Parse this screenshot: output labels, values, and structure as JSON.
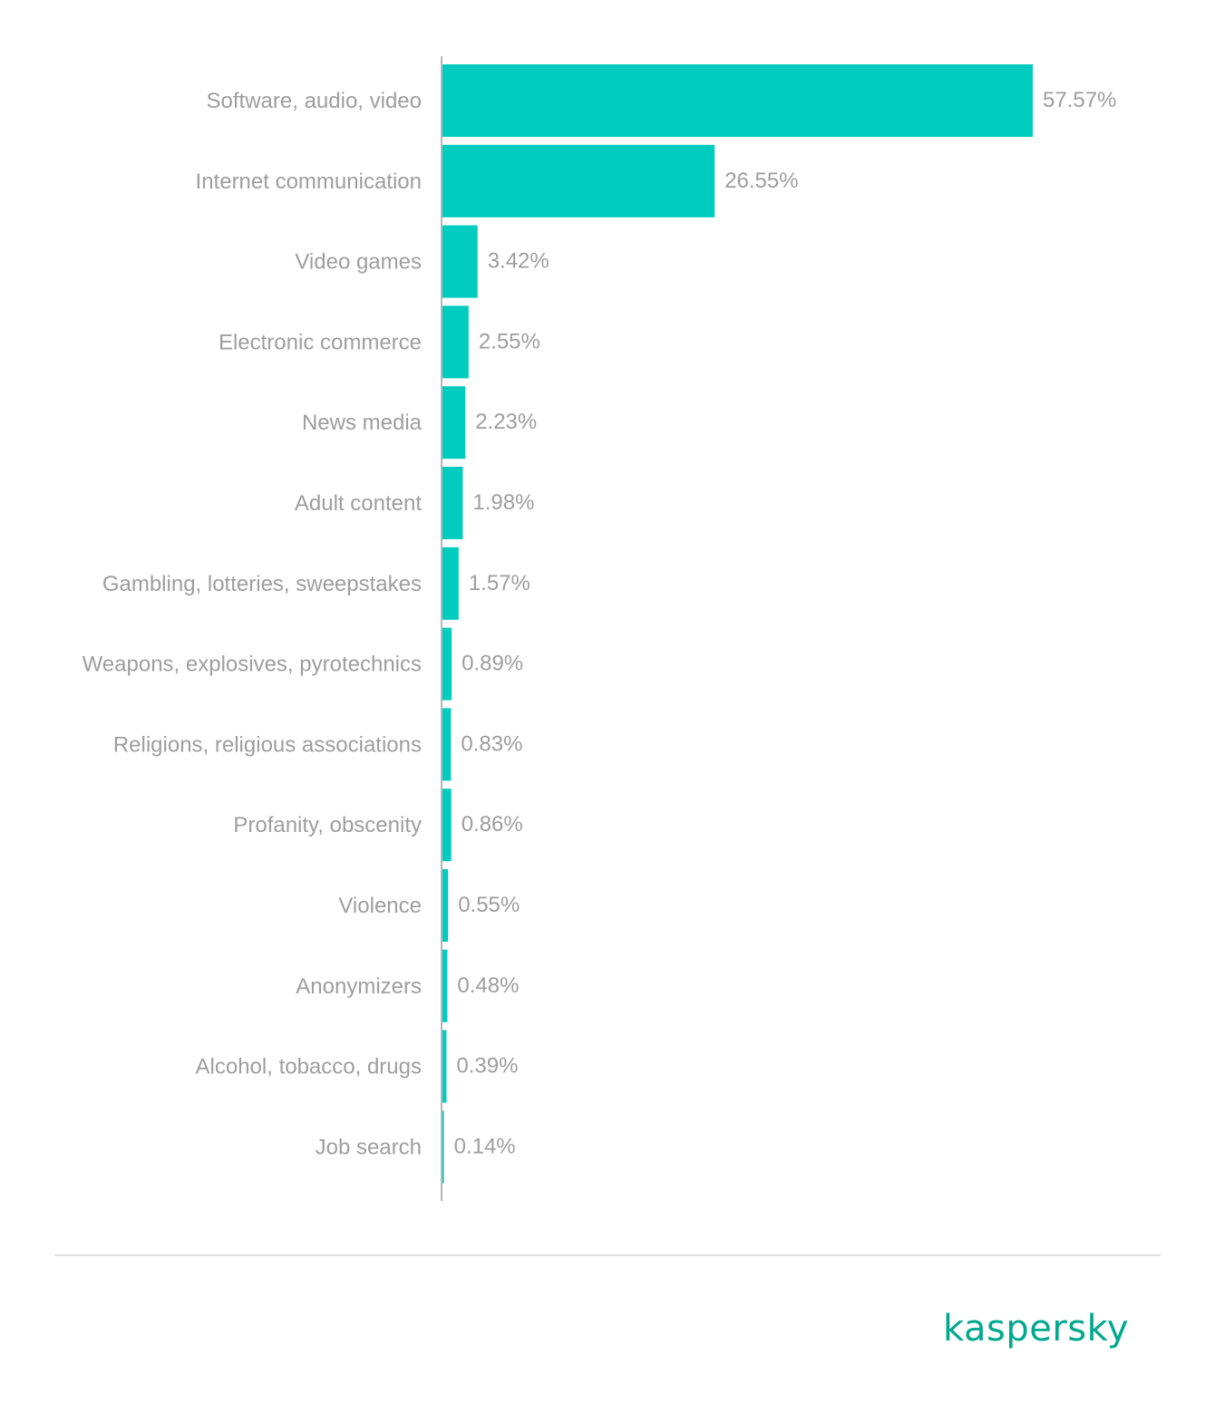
{
  "colors": {
    "bar": "#00ccbf",
    "label_text": "#9e9e9e",
    "value_text": "#9e9e9e",
    "axis_line": "#b5b5b5",
    "divider": "#e3e3e3",
    "brand": "#00a88e"
  },
  "chart_data": {
    "type": "bar",
    "orientation": "horizontal",
    "categories": [
      "Software, audio, video",
      "Internet communication",
      "Video games",
      "Electronic commerce",
      "News media",
      "Adult content",
      "Gambling, lotteries, sweepstakes",
      "Weapons, explosives, pyrotechnics",
      "Religions, religious associations",
      "Profanity, obscenity",
      "Violence",
      "Anonymizers",
      "Alcohol, tobacco, drugs",
      "Job search"
    ],
    "values": [
      57.57,
      26.55,
      3.42,
      2.55,
      2.23,
      1.98,
      1.57,
      0.89,
      0.83,
      0.86,
      0.55,
      0.48,
      0.39,
      0.14
    ],
    "value_labels": [
      "57.57%",
      "26.55%",
      "3.42%",
      "2.55%",
      "2.23%",
      "1.98%",
      "1.57%",
      "0.89%",
      "0.83%",
      "0.86%",
      "0.55%",
      "0.48%",
      "0.39%",
      "0.14%"
    ],
    "unit": "%",
    "title": "",
    "xlabel": "",
    "ylabel": "",
    "xlim": [
      0,
      57.57
    ],
    "grid": false,
    "legend": "none"
  },
  "footer": {
    "brand_text": "kaspersky"
  }
}
